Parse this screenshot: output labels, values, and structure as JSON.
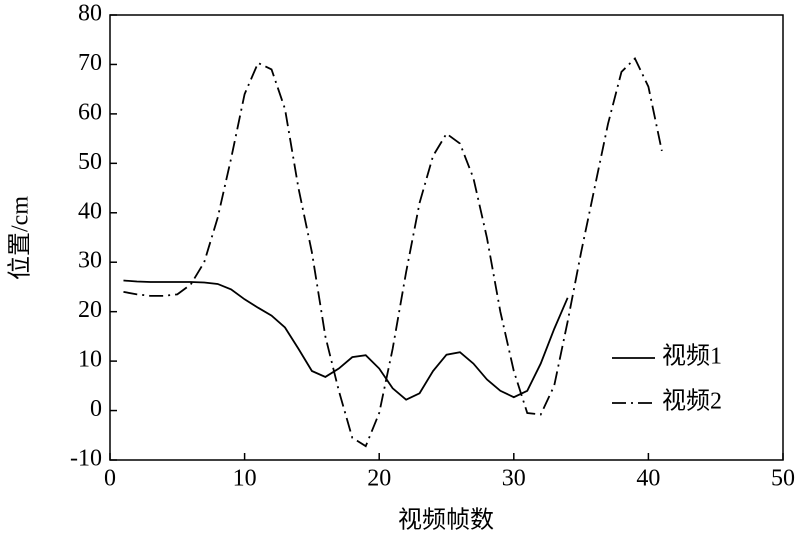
{
  "chart_data": {
    "type": "line",
    "x_label": "视频帧数",
    "y_label": "位置/cm",
    "xlim": [
      0,
      50
    ],
    "xticks": [
      0,
      10,
      20,
      30,
      40,
      50
    ],
    "ylim": [
      -10,
      80
    ],
    "yticks": [
      -10,
      0,
      10,
      20,
      30,
      40,
      50,
      60,
      70,
      80
    ],
    "legend": "lower right",
    "series": [
      {
        "name": "视频1",
        "color": "#000000",
        "dash": "solid",
        "x": [
          1,
          2,
          3,
          4,
          5,
          6,
          7,
          8,
          9,
          10,
          11,
          12,
          13,
          14,
          15,
          16,
          17,
          18,
          19,
          20,
          21,
          22,
          23,
          24,
          25,
          26,
          27,
          28,
          29,
          30,
          31,
          32,
          33,
          34
        ],
        "values": [
          26.3,
          26.1,
          26,
          26,
          26,
          26,
          25.9,
          25.6,
          24.5,
          22.5,
          20.8,
          19.2,
          16.8,
          12.5,
          8,
          6.8,
          8.5,
          10.8,
          11.2,
          8.5,
          4.5,
          2.2,
          3.5,
          8,
          11.3,
          11.8,
          9.5,
          6.3,
          4,
          2.7,
          4,
          9.5,
          16.5,
          22.8
        ]
      },
      {
        "name": "视频2",
        "color": "#000000",
        "dash": "dashdot",
        "x": [
          1,
          2,
          3,
          4,
          5,
          6,
          7,
          8,
          9,
          10,
          11,
          12,
          13,
          14,
          15,
          16,
          17,
          18,
          19,
          20,
          21,
          22,
          23,
          24,
          25,
          26,
          27,
          28,
          29,
          30,
          31,
          32,
          33,
          34,
          35,
          36,
          37,
          38,
          39,
          40,
          41
        ],
        "values": [
          24,
          23.5,
          23.2,
          23.2,
          23.5,
          25.5,
          30,
          39,
          51,
          64,
          70.3,
          69,
          61,
          45,
          32,
          15,
          4,
          -5.5,
          -7.2,
          -0.5,
          12.5,
          28,
          42,
          51.5,
          56,
          54,
          47,
          35,
          20,
          8,
          -0.5,
          -0.8,
          5,
          18,
          32,
          45,
          58,
          68.5,
          71.2,
          65.5,
          52.5
        ]
      }
    ]
  }
}
